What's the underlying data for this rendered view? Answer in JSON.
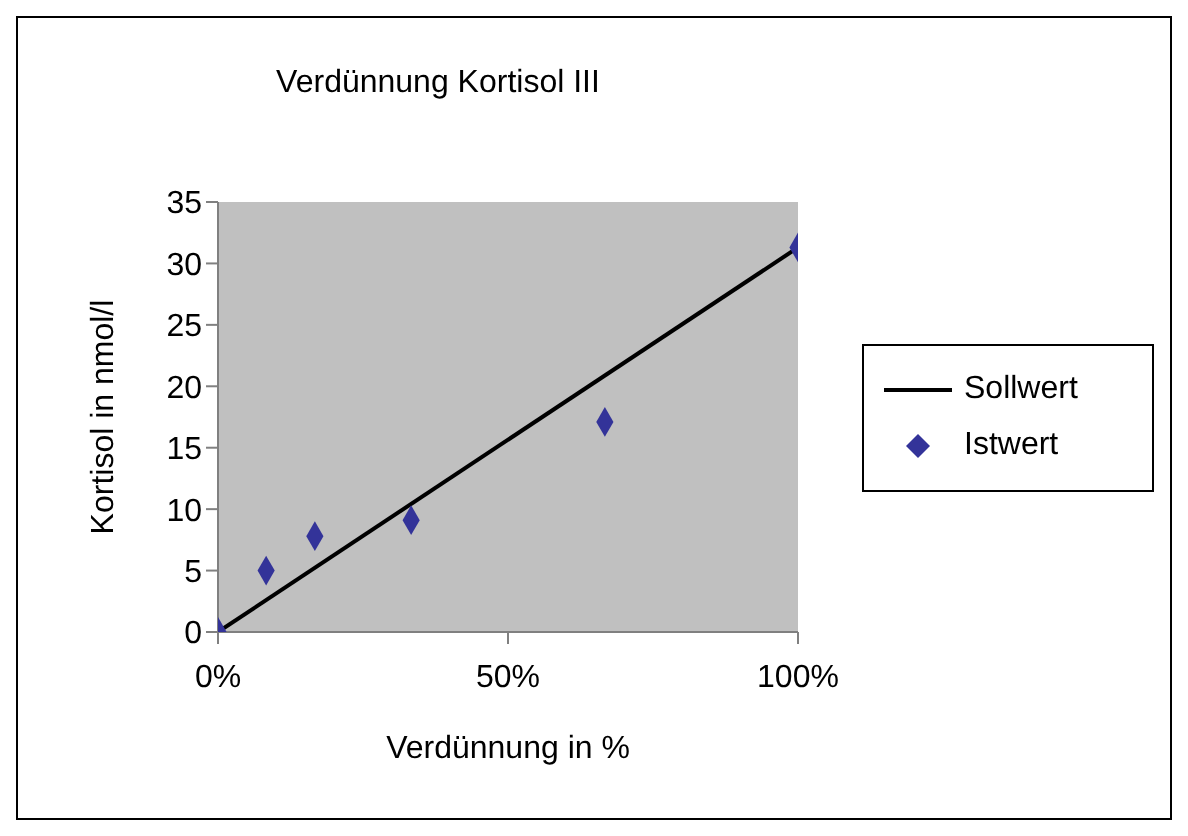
{
  "chart_data": {
    "type": "scatter",
    "title": "Verdünnung Kortisol III",
    "xlabel": "Verdünnung in %",
    "ylabel": "Kortisol in nmol/l",
    "xlim": [
      0,
      100
    ],
    "xticks": [
      {
        "value": 0,
        "label": "0%"
      },
      {
        "value": 50,
        "label": "50%"
      },
      {
        "value": 100,
        "label": "100%"
      }
    ],
    "ylim": [
      0,
      35
    ],
    "yticks": [
      0,
      5,
      10,
      15,
      20,
      25,
      30,
      35
    ],
    "grid": false,
    "legend": "right",
    "series": [
      {
        "name": "Sollwert",
        "type": "line",
        "color": "#000000",
        "x": [
          0,
          100
        ],
        "values": [
          0,
          31.3
        ],
        "marker": "none",
        "line_style": "solid"
      },
      {
        "name": "Istwert",
        "color": "#333399",
        "x": [
          0,
          8.3,
          16.7,
          33.3,
          66.7,
          100
        ],
        "values": [
          0,
          5,
          7.8,
          9.1,
          17.1,
          31.3
        ],
        "marker": "diamond"
      }
    ]
  }
}
